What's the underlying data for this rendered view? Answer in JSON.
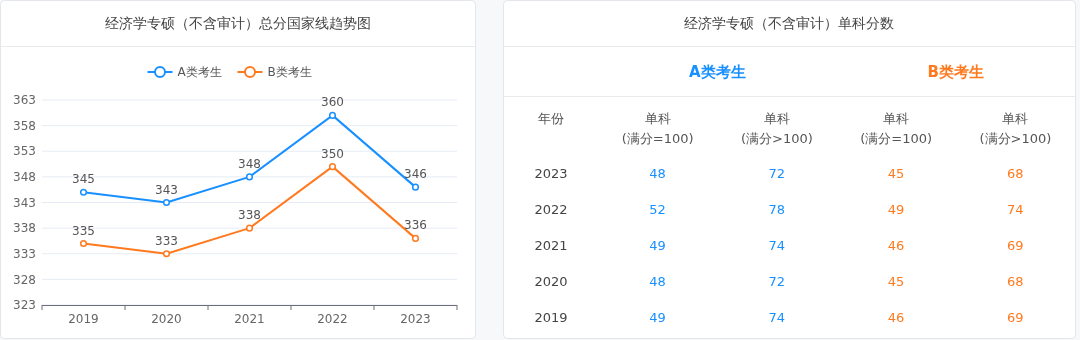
{
  "chart_data": [
    {
      "type": "line",
      "title": "经济学专硕（不含审计）总分国家线趋势图",
      "categories": [
        "2019",
        "2020",
        "2021",
        "2022",
        "2023"
      ],
      "series": [
        {
          "name": "A类考生",
          "color": "#1890ff",
          "values": [
            345,
            343,
            348,
            360,
            346
          ]
        },
        {
          "name": "B类考生",
          "color": "#ff7a1f",
          "values": [
            335,
            333,
            338,
            350,
            336
          ]
        }
      ],
      "ylim": [
        323,
        363
      ],
      "yticks": [
        323,
        328,
        333,
        338,
        343,
        348,
        353,
        358,
        363
      ],
      "grid": "y",
      "legend": "top",
      "marker": "circle",
      "data_labels": true
    },
    {
      "type": "heatmap",
      "title": "经济学专硕（不含审计）单科分数",
      "ylabel": "年份",
      "categories": [
        "单科(满分=100)",
        "单科(满分>100)",
        "单科(满分=100)",
        "单科(满分>100)"
      ],
      "y_categories": [
        "2023",
        "2022",
        "2021",
        "2020",
        "2019"
      ],
      "colors": [
        "#1890ff",
        "#1890ff",
        "#ff7a1f",
        "#ff7a1f"
      ],
      "annotations": [
        "A类考生",
        "B类考生"
      ],
      "data_labels": true,
      "cells": [
        [
          48,
          72,
          45,
          68
        ],
        [
          52,
          78,
          49,
          74
        ],
        [
          49,
          74,
          46,
          69
        ],
        [
          48,
          72,
          45,
          68
        ],
        [
          49,
          74,
          46,
          69
        ]
      ]
    }
  ]
}
